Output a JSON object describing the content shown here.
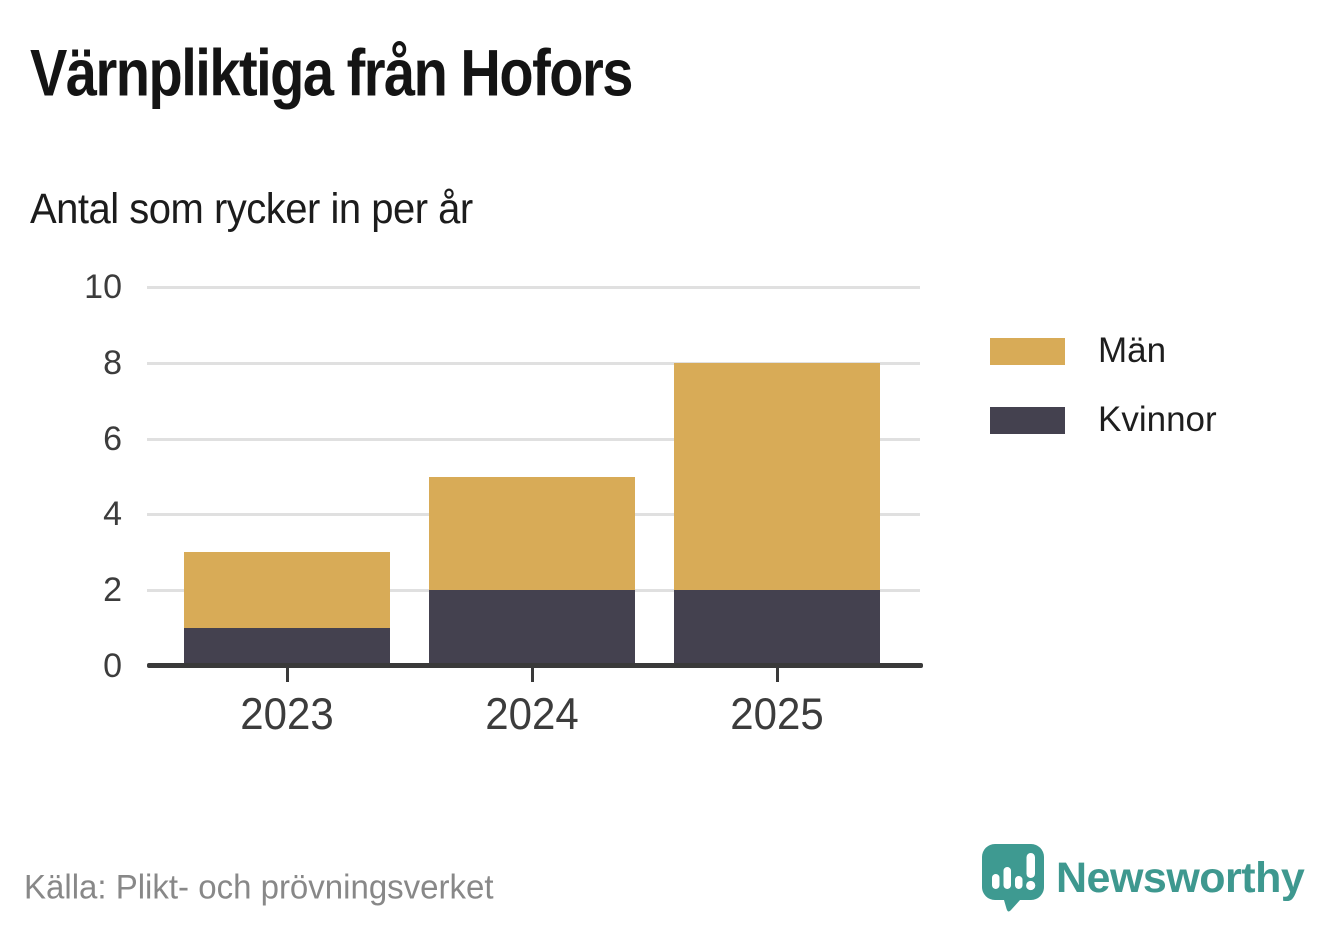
{
  "header": {
    "title": "Värnpliktiga från Hofors",
    "subtitle": "Antal som rycker in per år"
  },
  "footer": {
    "source": "Källa: Plikt- och prövningsverket",
    "brand": "Newsworthy",
    "brand_icon": "newsworthy-speech-bubble-bar-chart-icon"
  },
  "colors": {
    "men": "#D8AB57",
    "women": "#44414F",
    "brand_teal": "#3E988F",
    "gridline": "#E0E0E0",
    "axis": "#3A3A3A",
    "tick_text": "#3C3C3C",
    "source_text": "#888888",
    "background": "#FFFFFF"
  },
  "chart_data": {
    "type": "bar",
    "stacked": true,
    "title": "Värnpliktiga från Hofors",
    "subtitle": "Antal som rycker in per år",
    "xlabel": "",
    "ylabel": "",
    "categories": [
      "2023",
      "2024",
      "2025"
    ],
    "series": [
      {
        "name": "Män",
        "color": "#D8AB57",
        "values": [
          2,
          3,
          6
        ]
      },
      {
        "name": "Kvinnor",
        "color": "#44414F",
        "values": [
          1,
          2,
          2
        ]
      }
    ],
    "stack_bottom_series": "Kvinnor",
    "totals": [
      3,
      5,
      8
    ],
    "ylim": [
      0,
      10
    ],
    "yticks": [
      0,
      2,
      4,
      6,
      8,
      10
    ],
    "grid": true,
    "legend_position": "right",
    "legend_order": [
      "Män",
      "Kvinnor"
    ]
  }
}
